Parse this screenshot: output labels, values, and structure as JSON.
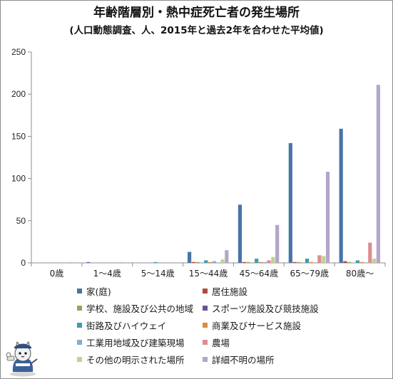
{
  "chart_data": {
    "type": "bar",
    "title": "年齢階層別・熱中症死亡者の発生場所",
    "subtitle": "(人口動態調査、人、2015年と過去2年を合わせた平均値)",
    "categories": [
      "0歳",
      "1～4歳",
      "5～14歳",
      "15～44歳",
      "45～64歳",
      "65～79歳",
      "80歳～"
    ],
    "ylim": [
      0,
      250
    ],
    "yticks": [
      0,
      50,
      100,
      150,
      200,
      250
    ],
    "grid": false,
    "legend_position": "bottom",
    "series": [
      {
        "name": "家(庭)",
        "color": "#4a74a8",
        "values": [
          0,
          1,
          0,
          13,
          69,
          142,
          159
        ]
      },
      {
        "name": "居住施設",
        "color": "#b34744",
        "values": [
          0,
          0,
          0,
          1,
          1,
          1,
          2
        ]
      },
      {
        "name": "学校、施設及び公共の地域",
        "color": "#8cac54",
        "values": [
          0,
          0,
          0,
          1,
          1,
          1,
          1
        ]
      },
      {
        "name": "スポーツ施設及び競技施設",
        "color": "#6a5390",
        "values": [
          0,
          0,
          0,
          0,
          0,
          0,
          0
        ]
      },
      {
        "name": "街路及びハイウェイ",
        "color": "#3c9cb4",
        "values": [
          0,
          0,
          1,
          3,
          5,
          5,
          3
        ]
      },
      {
        "name": "商業及びサービス施設",
        "color": "#e3893a",
        "values": [
          0,
          0,
          0,
          1,
          1,
          1,
          1
        ]
      },
      {
        "name": "工業用地域及び建築現場",
        "color": "#8da8d6",
        "values": [
          0,
          0,
          0,
          2,
          1,
          0,
          0
        ]
      },
      {
        "name": "農場",
        "color": "#dc8e8c",
        "values": [
          0,
          0,
          0,
          0,
          3,
          9,
          24
        ]
      },
      {
        "name": "その他の明示された場所",
        "color": "#bed296",
        "values": [
          1,
          1,
          0,
          4,
          7,
          8,
          5
        ]
      },
      {
        "name": "詳細不明の場所",
        "color": "#b4a6c8",
        "values": [
          0,
          0,
          0,
          15,
          45,
          108,
          211
        ]
      }
    ]
  }
}
